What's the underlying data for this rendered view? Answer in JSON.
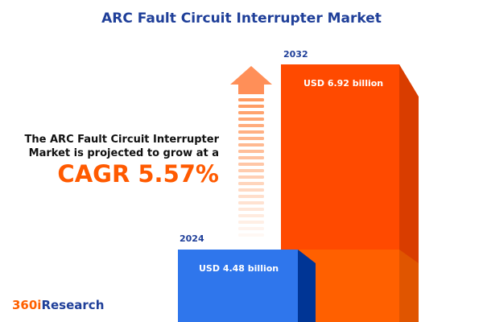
{
  "title": "ARC Fault Circuit Interrupter Market",
  "lead": [
    "The ARC Fault Circuit Interrupter",
    "Market is projected to grow at a"
  ],
  "cagr": "CAGR 5.57%",
  "bars": [
    {
      "year": "2024",
      "value": "USD 4.48 billion",
      "color": "#2f76ec"
    },
    {
      "year": "2032",
      "value": "USD 6.92 billion",
      "color": "#ff4a00"
    }
  ],
  "logo": {
    "prefix": "360i",
    "suffix": "Research"
  }
}
